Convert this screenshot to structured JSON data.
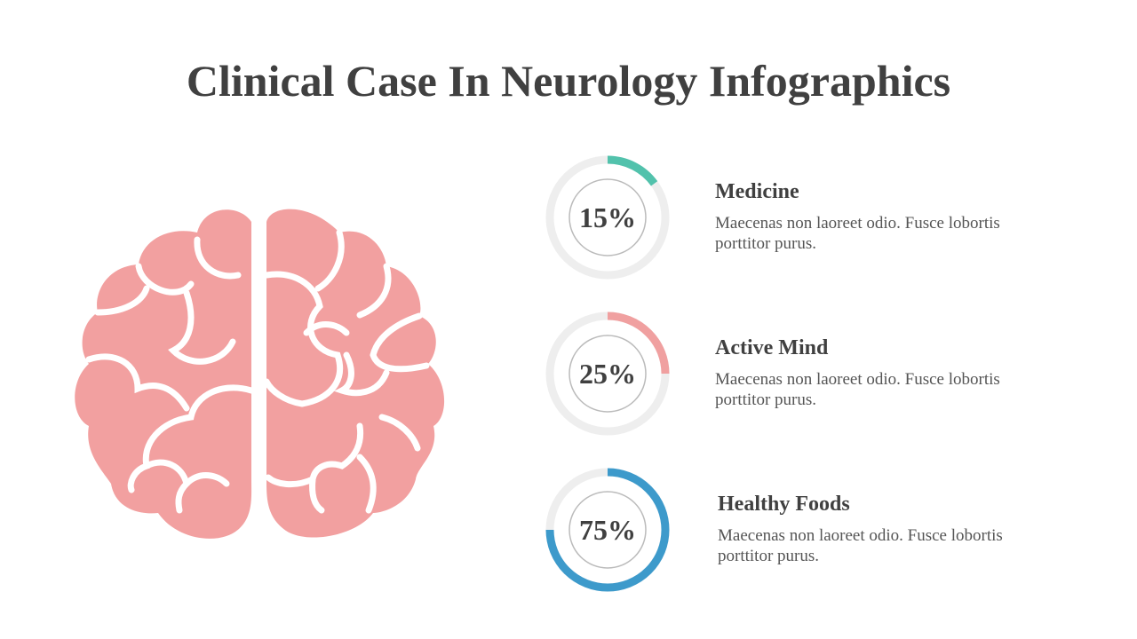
{
  "title": "Clinical Case In Neurology Infographics",
  "items": [
    {
      "heading": "Medicine",
      "text": "Maecenas non laoreet odio. Fusce lobortis porttitor purus.",
      "value": 15,
      "value_label": "15%",
      "color": "#52c2ac"
    },
    {
      "heading": "Active Mind",
      "text": "Maecenas non laoreet odio. Fusce lobortis porttitor purus.",
      "value": 25,
      "value_label": "25%",
      "color": "#f0a0a0"
    },
    {
      "heading": "Healthy Foods",
      "text": "Maecenas non laoreet odio. Fusce lobortis porttitor purus.",
      "value": 75,
      "value_label": "75%",
      "color": "#3d9acb"
    }
  ]
}
